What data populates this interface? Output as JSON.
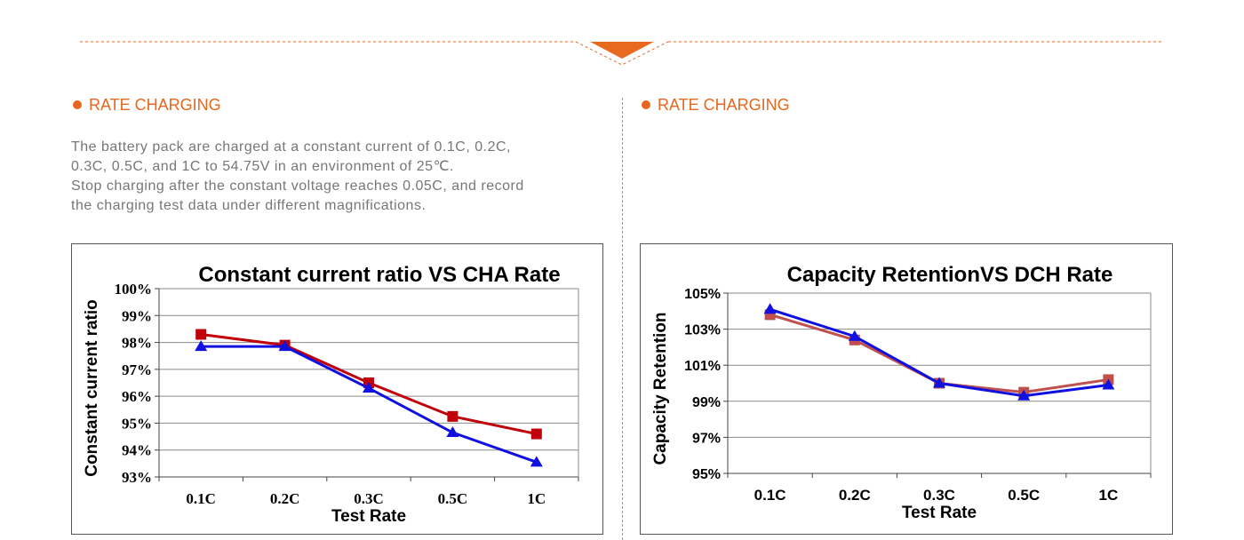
{
  "sections": [
    {
      "title": "RATE CHARGING"
    },
    {
      "title": "RATE CHARGING"
    }
  ],
  "description": [
    "The battery pack are charged at a constant current of 0.1C, 0.2C,",
    "0.3C, 0.5C, and 1C to 54.75V in an environment of 25℃.",
    "Stop charging after the constant voltage reaches 0.05C, and record",
    "the charging test data under different magnifications."
  ],
  "colors": {
    "accent": "#e8661e",
    "series_red": "#c0000a",
    "series_blue": "#1010e0",
    "series_rose": "#c0504d"
  },
  "chart_data": [
    {
      "type": "line",
      "title": "Constant current  ratio VS CHA Rate",
      "xlabel": "Test Rate",
      "ylabel": "Constant current ratio",
      "categories": [
        "0.1C",
        "0.2C",
        "0.3C",
        "0.5C",
        "1C"
      ],
      "ylim": [
        93,
        100
      ],
      "yticks": [
        "93%",
        "94%",
        "95%",
        "96%",
        "97%",
        "98%",
        "99%",
        "100%"
      ],
      "grid": true,
      "series": [
        {
          "values": [
            98.3,
            97.9,
            96.5,
            95.25,
            94.6
          ],
          "color": "#c0000a",
          "marker": "square"
        },
        {
          "values": [
            97.85,
            97.85,
            96.3,
            94.65,
            93.55
          ],
          "color": "#1010e0",
          "marker": "triangle"
        }
      ]
    },
    {
      "type": "line",
      "title": "Capacity RetentionVS DCH  Rate",
      "xlabel": "Test Rate",
      "ylabel": "Capacity Retention",
      "categories": [
        "0.1C",
        "0.2C",
        "0.3C",
        "0.5C",
        "1C"
      ],
      "ylim": [
        95,
        105
      ],
      "yticks": [
        "95%",
        "97%",
        "99%",
        "101%",
        "103%",
        "105%"
      ],
      "grid": true,
      "series": [
        {
          "values": [
            103.8,
            102.4,
            100.0,
            99.5,
            100.2
          ],
          "color": "#c0504d",
          "marker": "square"
        },
        {
          "values": [
            104.1,
            102.6,
            100.0,
            99.3,
            99.9
          ],
          "color": "#1010e0",
          "marker": "triangle"
        }
      ]
    }
  ]
}
